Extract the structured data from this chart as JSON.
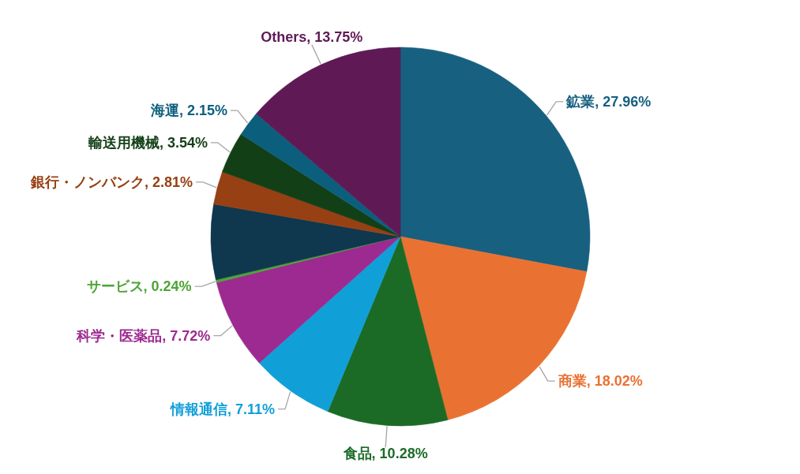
{
  "chart_data": {
    "type": "pie",
    "categories": [
      "鉱業",
      "商業",
      "食品",
      "情報通信",
      "科学・医薬品",
      "サービス",
      null,
      "銀行・ノンバンク",
      "輸送用機械",
      "海運",
      "Others"
    ],
    "values": [
      27.96,
      18.02,
      10.28,
      7.11,
      7.72,
      0.24,
      6.42,
      2.81,
      3.54,
      2.15,
      13.75
    ],
    "value_labels": [
      "27.96%",
      "18.02%",
      "10.28%",
      "7.11%",
      "7.72%",
      "0.24%",
      null,
      "2.81%",
      "3.54%",
      "2.15%",
      "13.75%"
    ],
    "colors": [
      "#17607f",
      "#e97232",
      "#1b6b26",
      "#119fd8",
      "#9c2a91",
      "#4ca535",
      "#0f374e",
      "#974013",
      "#133f17",
      "#0b5f7d",
      "#5f1a56"
    ]
  }
}
